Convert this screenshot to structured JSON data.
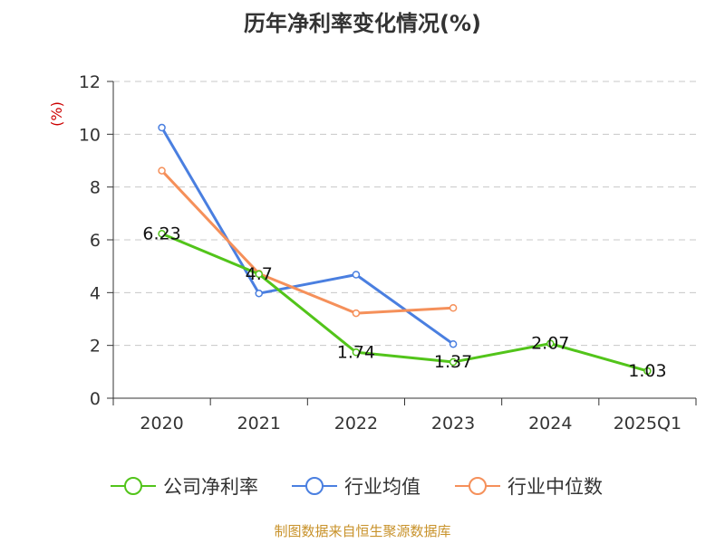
{
  "chart_data": {
    "type": "line",
    "title": "历年净利率变化情况(%)",
    "ylabel": "(%)",
    "xlabel": "",
    "ylim": [
      0,
      12
    ],
    "yticks": [
      0,
      2,
      4,
      6,
      8,
      10,
      12
    ],
    "categories": [
      "2020",
      "2021",
      "2022",
      "2023",
      "2024",
      "2025Q1"
    ],
    "grid": true,
    "legend_position": "bottom-center",
    "series": [
      {
        "name": "公司净利率",
        "color": "#52c41a",
        "values": [
          6.23,
          4.7,
          1.74,
          1.37,
          2.07,
          1.03
        ],
        "labels": [
          "6.23",
          "4.7",
          "1.74",
          "1.37",
          "2.07",
          "1.03"
        ]
      },
      {
        "name": "行业均值",
        "color": "#4a7fe0",
        "values": [
          10.25,
          3.97,
          4.68,
          2.05,
          null,
          null
        ]
      },
      {
        "name": "行业中位数",
        "color": "#f5905a",
        "values": [
          8.62,
          4.72,
          3.22,
          3.42,
          null,
          null
        ]
      }
    ]
  },
  "footer": {
    "source": "制图数据来自恒生聚源数据库"
  }
}
